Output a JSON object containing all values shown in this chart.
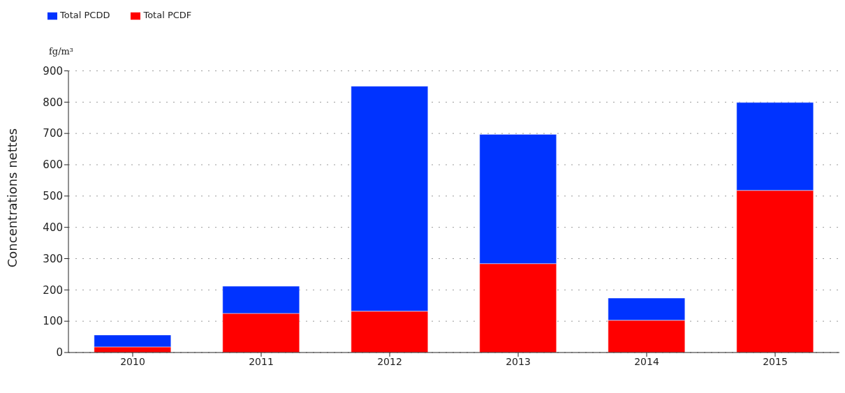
{
  "chart_data": {
    "type": "bar",
    "stacked": true,
    "ylabel": "Concentrations nettes",
    "annotations": [
      "fg/m³"
    ],
    "categories": [
      "2010",
      "2011",
      "2012",
      "2013",
      "2014",
      "2015"
    ],
    "series": [
      {
        "name": "Total PCDF",
        "color": "#ff0000",
        "values": [
          18,
          125,
          132,
          284,
          103,
          518
        ]
      },
      {
        "name": "Total PCDD",
        "color": "#0033ff",
        "values": [
          38,
          87,
          719,
          413,
          71,
          281
        ]
      }
    ],
    "ylim": [
      0,
      900
    ],
    "yticks": [
      0,
      100,
      200,
      300,
      400,
      500,
      600,
      700,
      800,
      900
    ],
    "grid": "y",
    "legend": "top left"
  }
}
